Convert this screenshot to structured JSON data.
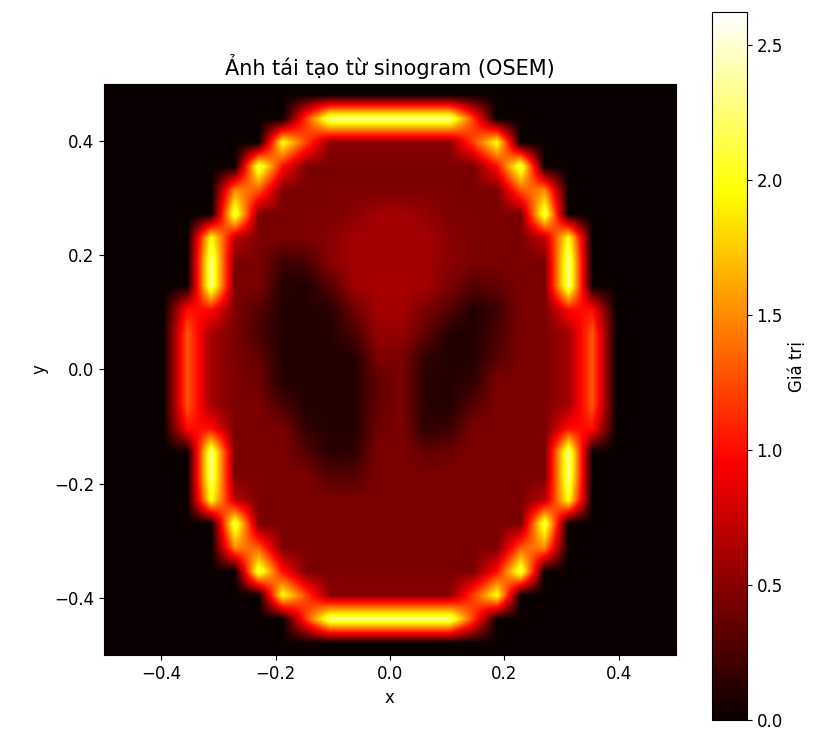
{
  "chart_data": {
    "type": "heatmap",
    "title": "Ảnh tái tạo từ sinogram (OSEM)",
    "xlabel": "x",
    "ylabel": "y",
    "xlim": [
      -0.5,
      0.5
    ],
    "ylim": [
      -0.5,
      0.5
    ],
    "xticks": [
      {
        "value": -0.4,
        "label": "−0.4"
      },
      {
        "value": -0.2,
        "label": "−0.2"
      },
      0.0,
      0.2,
      0.4
    ],
    "yticks": [
      {
        "value": -0.4,
        "label": "−0.4"
      },
      {
        "value": -0.2,
        "label": "−0.2"
      },
      0.0,
      0.2,
      0.4
    ],
    "color": "hot",
    "colorbar_label": "Giá trị",
    "colorbar_range": [
      0,
      2.62
    ],
    "colorbar_ticks": [
      0.0,
      0.5,
      1.0,
      1.5,
      2.0,
      2.5
    ],
    "cells": [
      [
        0,
        0,
        0,
        0,
        0,
        0,
        0,
        0,
        0,
        0,
        0,
        0,
        0,
        0,
        0,
        0,
        0,
        0,
        0,
        0,
        0,
        0,
        0,
        0
      ],
      [
        0,
        0,
        0,
        0,
        0,
        0,
        0,
        0,
        1.2,
        2.3,
        2.3,
        2.3,
        2.3,
        2.3,
        2.3,
        1.2,
        0,
        0,
        0,
        0,
        0,
        0,
        0,
        0
      ],
      [
        0,
        0,
        0,
        0,
        0,
        0,
        0,
        2.0,
        1.2,
        0.5,
        0.5,
        0.5,
        0.5,
        0.5,
        0.5,
        1.2,
        2.0,
        0,
        0,
        0,
        0,
        0,
        0,
        0
      ],
      [
        0,
        0,
        0,
        0,
        0,
        0,
        2.2,
        1.0,
        0.45,
        0.45,
        0.45,
        0.45,
        0.45,
        0.45,
        0.45,
        0.45,
        1.0,
        2.2,
        0,
        0,
        0,
        0,
        0,
        0
      ],
      [
        0,
        0,
        0,
        0,
        0,
        1.5,
        1.3,
        0.45,
        0.45,
        0.45,
        0.45,
        0.45,
        0.45,
        0.45,
        0.45,
        0.45,
        0.45,
        1.3,
        1.5,
        0,
        0,
        0,
        0,
        0
      ],
      [
        0,
        0,
        0,
        0,
        0,
        2.2,
        0.45,
        0.45,
        0.45,
        0.45,
        0.5,
        0.6,
        0.6,
        0.55,
        0.45,
        0.45,
        0.45,
        0.45,
        2.2,
        0,
        0,
        0,
        0,
        0
      ],
      [
        0,
        0,
        0,
        0,
        2.0,
        0.7,
        0.45,
        0.45,
        0.45,
        0.5,
        0.6,
        0.6,
        0.6,
        0.6,
        0.5,
        0.45,
        0.45,
        0.45,
        0.7,
        2.0,
        0,
        0,
        0,
        0
      ],
      [
        0,
        0,
        0,
        0,
        2.3,
        0.45,
        0.45,
        0.2,
        0.25,
        0.5,
        0.6,
        0.6,
        0.6,
        0.6,
        0.5,
        0.45,
        0.45,
        0.45,
        0.45,
        2.3,
        0,
        0,
        0,
        0
      ],
      [
        0,
        0,
        0,
        0,
        2.3,
        0.45,
        0.45,
        0.12,
        0.1,
        0.3,
        0.6,
        0.62,
        0.62,
        0.6,
        0.45,
        0.3,
        0.35,
        0.45,
        0.45,
        2.3,
        0,
        0,
        0,
        0
      ],
      [
        0,
        0,
        0,
        1.0,
        1.0,
        0.45,
        0.3,
        0.1,
        0.1,
        0.12,
        0.4,
        0.6,
        0.6,
        0.45,
        0.3,
        0.1,
        0.2,
        0.45,
        0.45,
        1.0,
        1.0,
        0,
        0,
        0
      ],
      [
        0,
        0,
        0,
        1.3,
        0.6,
        0.45,
        0.25,
        0.1,
        0.1,
        0.1,
        0.25,
        0.55,
        0.55,
        0.35,
        0.1,
        0.1,
        0.25,
        0.45,
        0.45,
        0.6,
        1.3,
        0,
        0,
        0
      ],
      [
        0,
        0,
        0,
        1.3,
        0.6,
        0.45,
        0.35,
        0.1,
        0.1,
        0.1,
        0.1,
        0.45,
        0.45,
        0.15,
        0.1,
        0.1,
        0.3,
        0.45,
        0.45,
        0.6,
        1.3,
        0,
        0,
        0
      ],
      [
        0,
        0,
        0,
        1.3,
        0.6,
        0.45,
        0.4,
        0.1,
        0.1,
        0.1,
        0.1,
        0.35,
        0.45,
        0.12,
        0.1,
        0.15,
        0.45,
        0.45,
        0.45,
        0.6,
        1.3,
        0,
        0,
        0
      ],
      [
        0,
        0,
        0,
        1.3,
        0.6,
        0.45,
        0.45,
        0.25,
        0.1,
        0.1,
        0.1,
        0.35,
        0.45,
        0.12,
        0.1,
        0.3,
        0.45,
        0.45,
        0.45,
        0.6,
        1.3,
        0,
        0,
        0
      ],
      [
        0,
        0,
        0,
        1.0,
        1.0,
        0.45,
        0.45,
        0.45,
        0.15,
        0.1,
        0.1,
        0.4,
        0.45,
        0.15,
        0.2,
        0.45,
        0.45,
        0.45,
        0.45,
        1.0,
        1.0,
        0,
        0,
        0
      ],
      [
        0,
        0,
        0,
        0,
        2.3,
        0.45,
        0.45,
        0.45,
        0.3,
        0.12,
        0.15,
        0.45,
        0.45,
        0.35,
        0.4,
        0.45,
        0.45,
        0.45,
        0.45,
        2.3,
        0,
        0,
        0,
        0
      ],
      [
        0,
        0,
        0,
        0,
        2.3,
        0.45,
        0.45,
        0.45,
        0.45,
        0.3,
        0.3,
        0.45,
        0.45,
        0.45,
        0.45,
        0.45,
        0.45,
        0.45,
        0.45,
        2.3,
        0,
        0,
        0,
        0
      ],
      [
        0,
        0,
        0,
        0,
        2.0,
        0.7,
        0.45,
        0.45,
        0.45,
        0.45,
        0.45,
        0.45,
        0.45,
        0.45,
        0.45,
        0.45,
        0.45,
        0.45,
        0.7,
        2.0,
        0,
        0,
        0,
        0
      ],
      [
        0,
        0,
        0,
        0,
        0,
        2.2,
        0.45,
        0.45,
        0.45,
        0.45,
        0.45,
        0.45,
        0.45,
        0.45,
        0.45,
        0.45,
        0.45,
        0.45,
        2.2,
        0,
        0,
        0,
        0,
        0
      ],
      [
        0,
        0,
        0,
        0,
        0,
        1.5,
        1.3,
        0.45,
        0.45,
        0.45,
        0.45,
        0.45,
        0.45,
        0.45,
        0.45,
        0.45,
        0.45,
        1.3,
        1.5,
        0,
        0,
        0,
        0,
        0
      ],
      [
        0,
        0,
        0,
        0,
        0,
        0,
        2.2,
        1.0,
        0.45,
        0.45,
        0.45,
        0.45,
        0.45,
        0.45,
        0.45,
        0.45,
        1.0,
        2.2,
        0,
        0,
        0,
        0,
        0,
        0
      ],
      [
        0,
        0,
        0,
        0,
        0,
        0,
        0,
        2.0,
        1.2,
        0.5,
        0.5,
        0.5,
        0.5,
        0.5,
        0.5,
        1.2,
        2.0,
        0,
        0,
        0,
        0,
        0,
        0,
        0
      ],
      [
        0,
        0,
        0,
        0,
        0,
        0,
        0,
        0,
        1.2,
        2.3,
        2.3,
        2.3,
        2.3,
        2.3,
        2.3,
        1.2,
        0,
        0,
        0,
        0,
        0,
        0,
        0,
        0
      ],
      [
        0,
        0,
        0,
        0,
        0,
        0,
        0,
        0,
        0,
        0,
        0,
        0,
        0,
        0,
        0,
        0,
        0,
        0,
        0,
        0,
        0,
        0,
        0,
        0
      ]
    ]
  }
}
